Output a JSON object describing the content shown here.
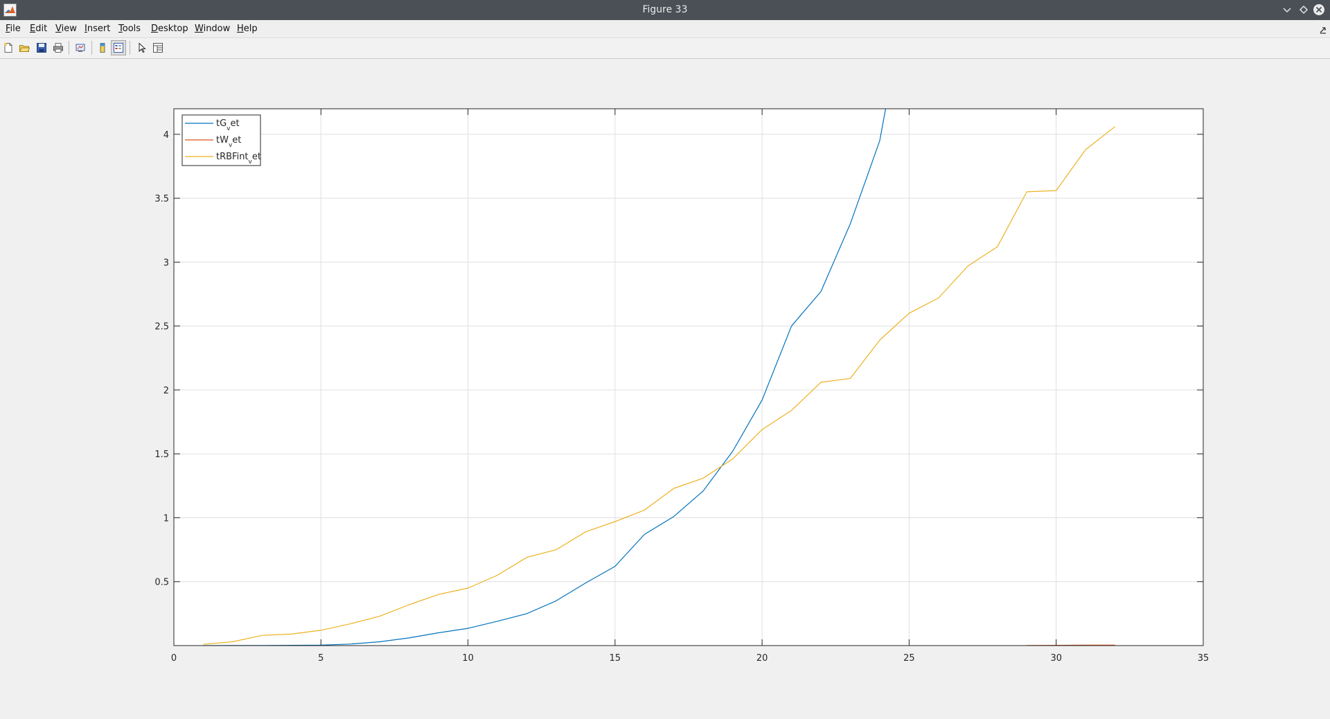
{
  "window": {
    "title": "Figure 33",
    "icons": {
      "app": "matlab-logo-icon",
      "minimize": "chevron-down-icon",
      "maximize": "diamond-icon",
      "close": "close-icon"
    }
  },
  "menubar": {
    "items": [
      {
        "mn": "F",
        "rest": "ile"
      },
      {
        "mn": "E",
        "rest": "dit"
      },
      {
        "mn": "V",
        "rest": "iew"
      },
      {
        "mn": "I",
        "rest": "nsert"
      },
      {
        "mn": "T",
        "rest": "ools"
      },
      {
        "mn": "D",
        "rest": "esktop"
      },
      {
        "mn": "W",
        "rest": "indow"
      },
      {
        "mn": "H",
        "rest": "elp"
      }
    ],
    "dock_icon": "dock-arrow-icon"
  },
  "toolbar": {
    "buttons": [
      {
        "icon": "new-figure-icon"
      },
      {
        "icon": "open-file-icon"
      },
      {
        "icon": "save-icon"
      },
      {
        "icon": "print-icon"
      },
      {
        "icon": "link-plot-icon"
      },
      {
        "icon": "colorbar-icon"
      },
      {
        "icon": "legend-toggle-icon",
        "pressed": true
      },
      {
        "icon": "edit-plot-arrow-icon"
      },
      {
        "icon": "property-inspector-icon"
      }
    ]
  },
  "chart_data": {
    "type": "line",
    "title": "",
    "xlabel": "",
    "ylabel": "",
    "xlim": [
      0,
      35
    ],
    "ylim": [
      0,
      4.2
    ],
    "x_ticks": [
      0,
      5,
      10,
      15,
      20,
      25,
      30,
      35
    ],
    "y_ticks": [
      0.5,
      1,
      1.5,
      2,
      2.5,
      3,
      3.5,
      4
    ],
    "x_tick_labels": [
      "0",
      "5",
      "10",
      "15",
      "20",
      "25",
      "30",
      "35"
    ],
    "y_tick_labels": [
      "0.5",
      "1",
      "1.5",
      "2",
      "2.5",
      "3",
      "3.5",
      "4"
    ],
    "grid": true,
    "legend_position": "top-left",
    "series": [
      {
        "label_main": "tG",
        "label_sub": "v",
        "label_tail": "et",
        "color": "#0072BD",
        "x": [
          1,
          2,
          3,
          4,
          5,
          6,
          7,
          8,
          9,
          10,
          11,
          12,
          13,
          14,
          15,
          16,
          17,
          18,
          19,
          20,
          21,
          22,
          23,
          24,
          25
        ],
        "y": [
          0.0001,
          0.0003,
          0.0008,
          0.002,
          0.004,
          0.012,
          0.03,
          0.06,
          0.1,
          0.135,
          0.19,
          0.25,
          0.35,
          0.49,
          0.62,
          0.87,
          1.01,
          1.21,
          1.52,
          1.92,
          2.5,
          2.77,
          3.3,
          3.95,
          5.2
        ]
      },
      {
        "label_main": "tW",
        "label_sub": "v",
        "label_tail": "et",
        "color": "#D95319",
        "x": [
          29,
          30,
          31,
          32
        ],
        "y": [
          0.001,
          0.002,
          0.003,
          0.004
        ]
      },
      {
        "label_main": "tRBFint",
        "label_sub": "v",
        "label_tail": "et",
        "color": "#EDB120",
        "x": [
          1,
          2,
          3,
          4,
          5,
          6,
          7,
          8,
          9,
          10,
          11,
          12,
          13,
          14,
          15,
          16,
          17,
          18,
          19,
          20,
          21,
          22,
          23,
          24,
          25,
          26,
          27,
          28,
          29,
          30,
          31,
          32
        ],
        "y": [
          0.01,
          0.03,
          0.08,
          0.09,
          0.12,
          0.17,
          0.23,
          0.32,
          0.4,
          0.45,
          0.55,
          0.69,
          0.75,
          0.89,
          0.97,
          1.06,
          1.23,
          1.31,
          1.46,
          1.69,
          1.84,
          2.06,
          2.09,
          2.39,
          2.6,
          2.72,
          2.97,
          3.12,
          3.55,
          3.56,
          3.88,
          4.06
        ]
      }
    ]
  }
}
